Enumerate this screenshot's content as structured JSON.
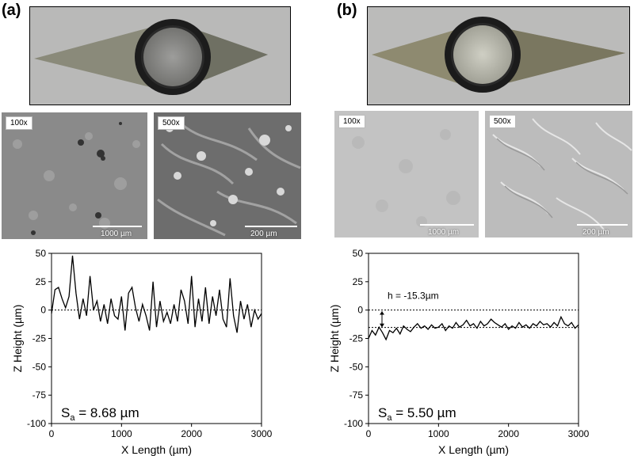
{
  "panels": [
    {
      "label": "(a)",
      "micrographs": [
        {
          "mag": "100x",
          "scale": "1000 µm"
        },
        {
          "mag": "500x",
          "scale": "200 µm"
        }
      ],
      "roughness": {
        "symbol": "S",
        "subscript": "a",
        "text": " = 8.68 µm"
      },
      "annotation": ""
    },
    {
      "label": "(b)",
      "micrographs": [
        {
          "mag": "100x",
          "scale": "1000 µm"
        },
        {
          "mag": "500x",
          "scale": "200 µm"
        }
      ],
      "roughness": {
        "symbol": "S",
        "subscript": "a",
        "text": " = 5.50 µm"
      },
      "annotation": "h = -15.3µm"
    }
  ],
  "chart_data": [
    {
      "type": "line",
      "xlabel": "X Length (µm)",
      "ylabel": "Z Height (µm)",
      "xlim": [
        0,
        3000
      ],
      "ylim": [
        -100,
        50
      ],
      "xticks": [
        0,
        1000,
        2000,
        3000
      ],
      "yticks": [
        50,
        25,
        0,
        -25,
        -50,
        -75,
        -100
      ],
      "reference_lines": [
        0
      ],
      "x": [
        0,
        50,
        100,
        150,
        200,
        250,
        300,
        350,
        400,
        450,
        500,
        550,
        600,
        650,
        700,
        750,
        800,
        850,
        900,
        950,
        1000,
        1050,
        1100,
        1150,
        1200,
        1250,
        1300,
        1350,
        1400,
        1450,
        1500,
        1550,
        1600,
        1650,
        1700,
        1750,
        1800,
        1850,
        1900,
        1950,
        2000,
        2050,
        2100,
        2150,
        2200,
        2250,
        2300,
        2350,
        2400,
        2450,
        2500,
        2550,
        2600,
        2650,
        2700,
        2750,
        2800,
        2850,
        2900,
        2950,
        3000
      ],
      "y": [
        -3,
        18,
        20,
        10,
        2,
        12,
        48,
        15,
        -8,
        10,
        -5,
        30,
        0,
        8,
        -10,
        5,
        -12,
        10,
        -5,
        -8,
        12,
        -18,
        15,
        20,
        2,
        -10,
        5,
        -5,
        -18,
        25,
        -15,
        8,
        -10,
        -2,
        -12,
        5,
        -10,
        18,
        8,
        -12,
        30,
        -15,
        10,
        -10,
        20,
        -12,
        12,
        -5,
        18,
        -8,
        -15,
        28,
        -5,
        -20,
        8,
        -8,
        5,
        -15,
        0,
        -8,
        -3
      ]
    },
    {
      "type": "line",
      "xlabel": "X Length (µm)",
      "ylabel": "Z Height (µm)",
      "xlim": [
        0,
        3000
      ],
      "ylim": [
        -100,
        50
      ],
      "xticks": [
        0,
        1000,
        2000,
        3000
      ],
      "yticks": [
        50,
        25,
        0,
        -25,
        -50,
        -75,
        -100
      ],
      "reference_lines": [
        0,
        -15.3
      ],
      "x": [
        0,
        50,
        100,
        150,
        200,
        250,
        300,
        350,
        400,
        450,
        500,
        550,
        600,
        650,
        700,
        750,
        800,
        850,
        900,
        950,
        1000,
        1050,
        1100,
        1150,
        1200,
        1250,
        1300,
        1350,
        1400,
        1450,
        1500,
        1550,
        1600,
        1650,
        1700,
        1750,
        1800,
        1850,
        1900,
        1950,
        2000,
        2050,
        2100,
        2150,
        2200,
        2250,
        2300,
        2350,
        2400,
        2450,
        2500,
        2550,
        2600,
        2650,
        2700,
        2750,
        2800,
        2850,
        2900,
        2950,
        3000
      ],
      "y": [
        -25,
        -18,
        -22,
        -15,
        -20,
        -26,
        -18,
        -20,
        -16,
        -21,
        -14,
        -17,
        -19,
        -15,
        -12,
        -16,
        -14,
        -17,
        -13,
        -16,
        -15,
        -12,
        -18,
        -14,
        -16,
        -11,
        -15,
        -13,
        -9,
        -14,
        -12,
        -16,
        -10,
        -14,
        -12,
        -8,
        -11,
        -13,
        -15,
        -12,
        -17,
        -14,
        -16,
        -11,
        -15,
        -13,
        -16,
        -12,
        -14,
        -10,
        -13,
        -12,
        -15,
        -11,
        -14,
        -6,
        -12,
        -14,
        -11,
        -16,
        -13
      ]
    }
  ]
}
